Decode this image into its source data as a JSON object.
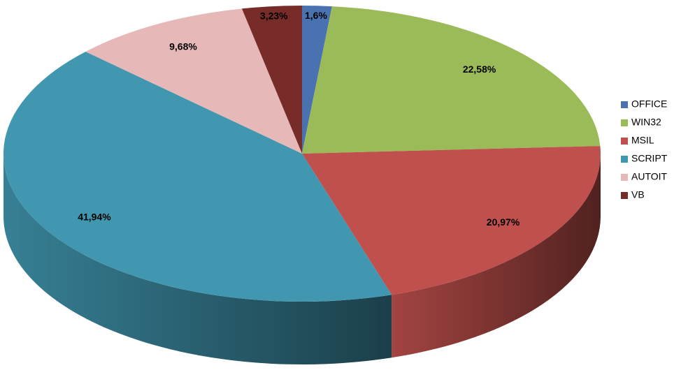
{
  "chart_data": {
    "type": "pie",
    "categories": [
      "OFFICE",
      "WIN32",
      "MSIL",
      "SCRIPT",
      "AUTOIT",
      "VB"
    ],
    "values": [
      1.6,
      22.58,
      20.97,
      41.94,
      9.68,
      3.23
    ],
    "value_labels": [
      "1,6%",
      "22,58%",
      "20,97%",
      "41,94%",
      "9,68%",
      "3,23%"
    ],
    "colors": [
      "#4a72b0",
      "#9bbb59",
      "#c0504d",
      "#4197af",
      "#e6b9b8",
      "#772c2a"
    ],
    "legend": "right"
  }
}
